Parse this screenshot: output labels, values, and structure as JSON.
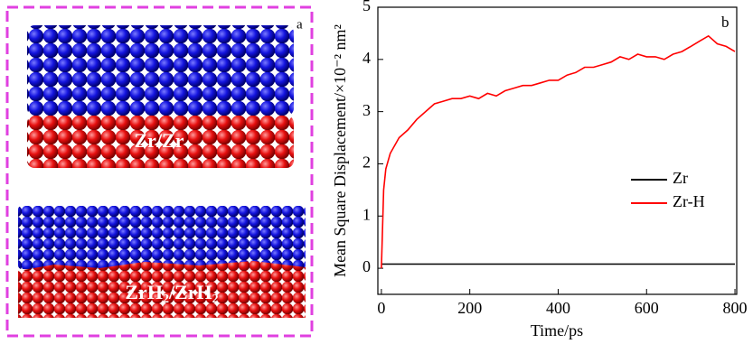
{
  "panel_a": {
    "label": "a",
    "top_label": "Zr/Zr",
    "bottom_label": [
      "ZrH",
      "2",
      "/ZrH",
      "2"
    ]
  },
  "chart_data": {
    "type": "line",
    "panel_label": "b",
    "x_label": "Time/ps",
    "y_label": "Mean Square Displacement/×10⁻² nm²",
    "x": [
      0,
      5,
      10,
      20,
      40,
      60,
      80,
      100,
      120,
      140,
      160,
      180,
      200,
      220,
      240,
      260,
      280,
      300,
      320,
      340,
      360,
      380,
      400,
      420,
      440,
      460,
      480,
      500,
      520,
      540,
      560,
      580,
      600,
      620,
      640,
      660,
      680,
      700,
      720,
      740,
      760,
      780,
      800
    ],
    "series": [
      {
        "name": "Zr",
        "color": "#000000",
        "values": [
          0.08,
          0.08,
          0.08,
          0.08,
          0.08,
          0.08,
          0.08,
          0.08,
          0.08,
          0.08,
          0.08,
          0.08,
          0.08,
          0.08,
          0.08,
          0.08,
          0.08,
          0.08,
          0.08,
          0.08,
          0.08,
          0.08,
          0.08,
          0.08,
          0.08,
          0.08,
          0.08,
          0.08,
          0.08,
          0.08,
          0.08,
          0.08,
          0.08,
          0.08,
          0.08,
          0.08,
          0.08,
          0.08,
          0.08,
          0.08,
          0.08,
          0.08,
          0.08
        ]
      },
      {
        "name": "Zr-H",
        "color": "#ff0000",
        "values": [
          0.0,
          1.5,
          1.9,
          2.2,
          2.5,
          2.65,
          2.85,
          3.0,
          3.15,
          3.2,
          3.25,
          3.25,
          3.3,
          3.25,
          3.35,
          3.3,
          3.4,
          3.45,
          3.5,
          3.5,
          3.55,
          3.6,
          3.6,
          3.7,
          3.75,
          3.85,
          3.85,
          3.9,
          3.95,
          4.05,
          4.0,
          4.1,
          4.05,
          4.05,
          4.0,
          4.1,
          4.15,
          4.25,
          4.35,
          4.45,
          4.3,
          4.25,
          4.15
        ]
      }
    ],
    "xlim": [
      -8,
      804
    ],
    "ylim": [
      -0.5,
      5
    ],
    "xticks": [
      0,
      200,
      400,
      600,
      800
    ],
    "yticks": [
      0,
      1,
      2,
      3,
      4,
      5
    ]
  }
}
